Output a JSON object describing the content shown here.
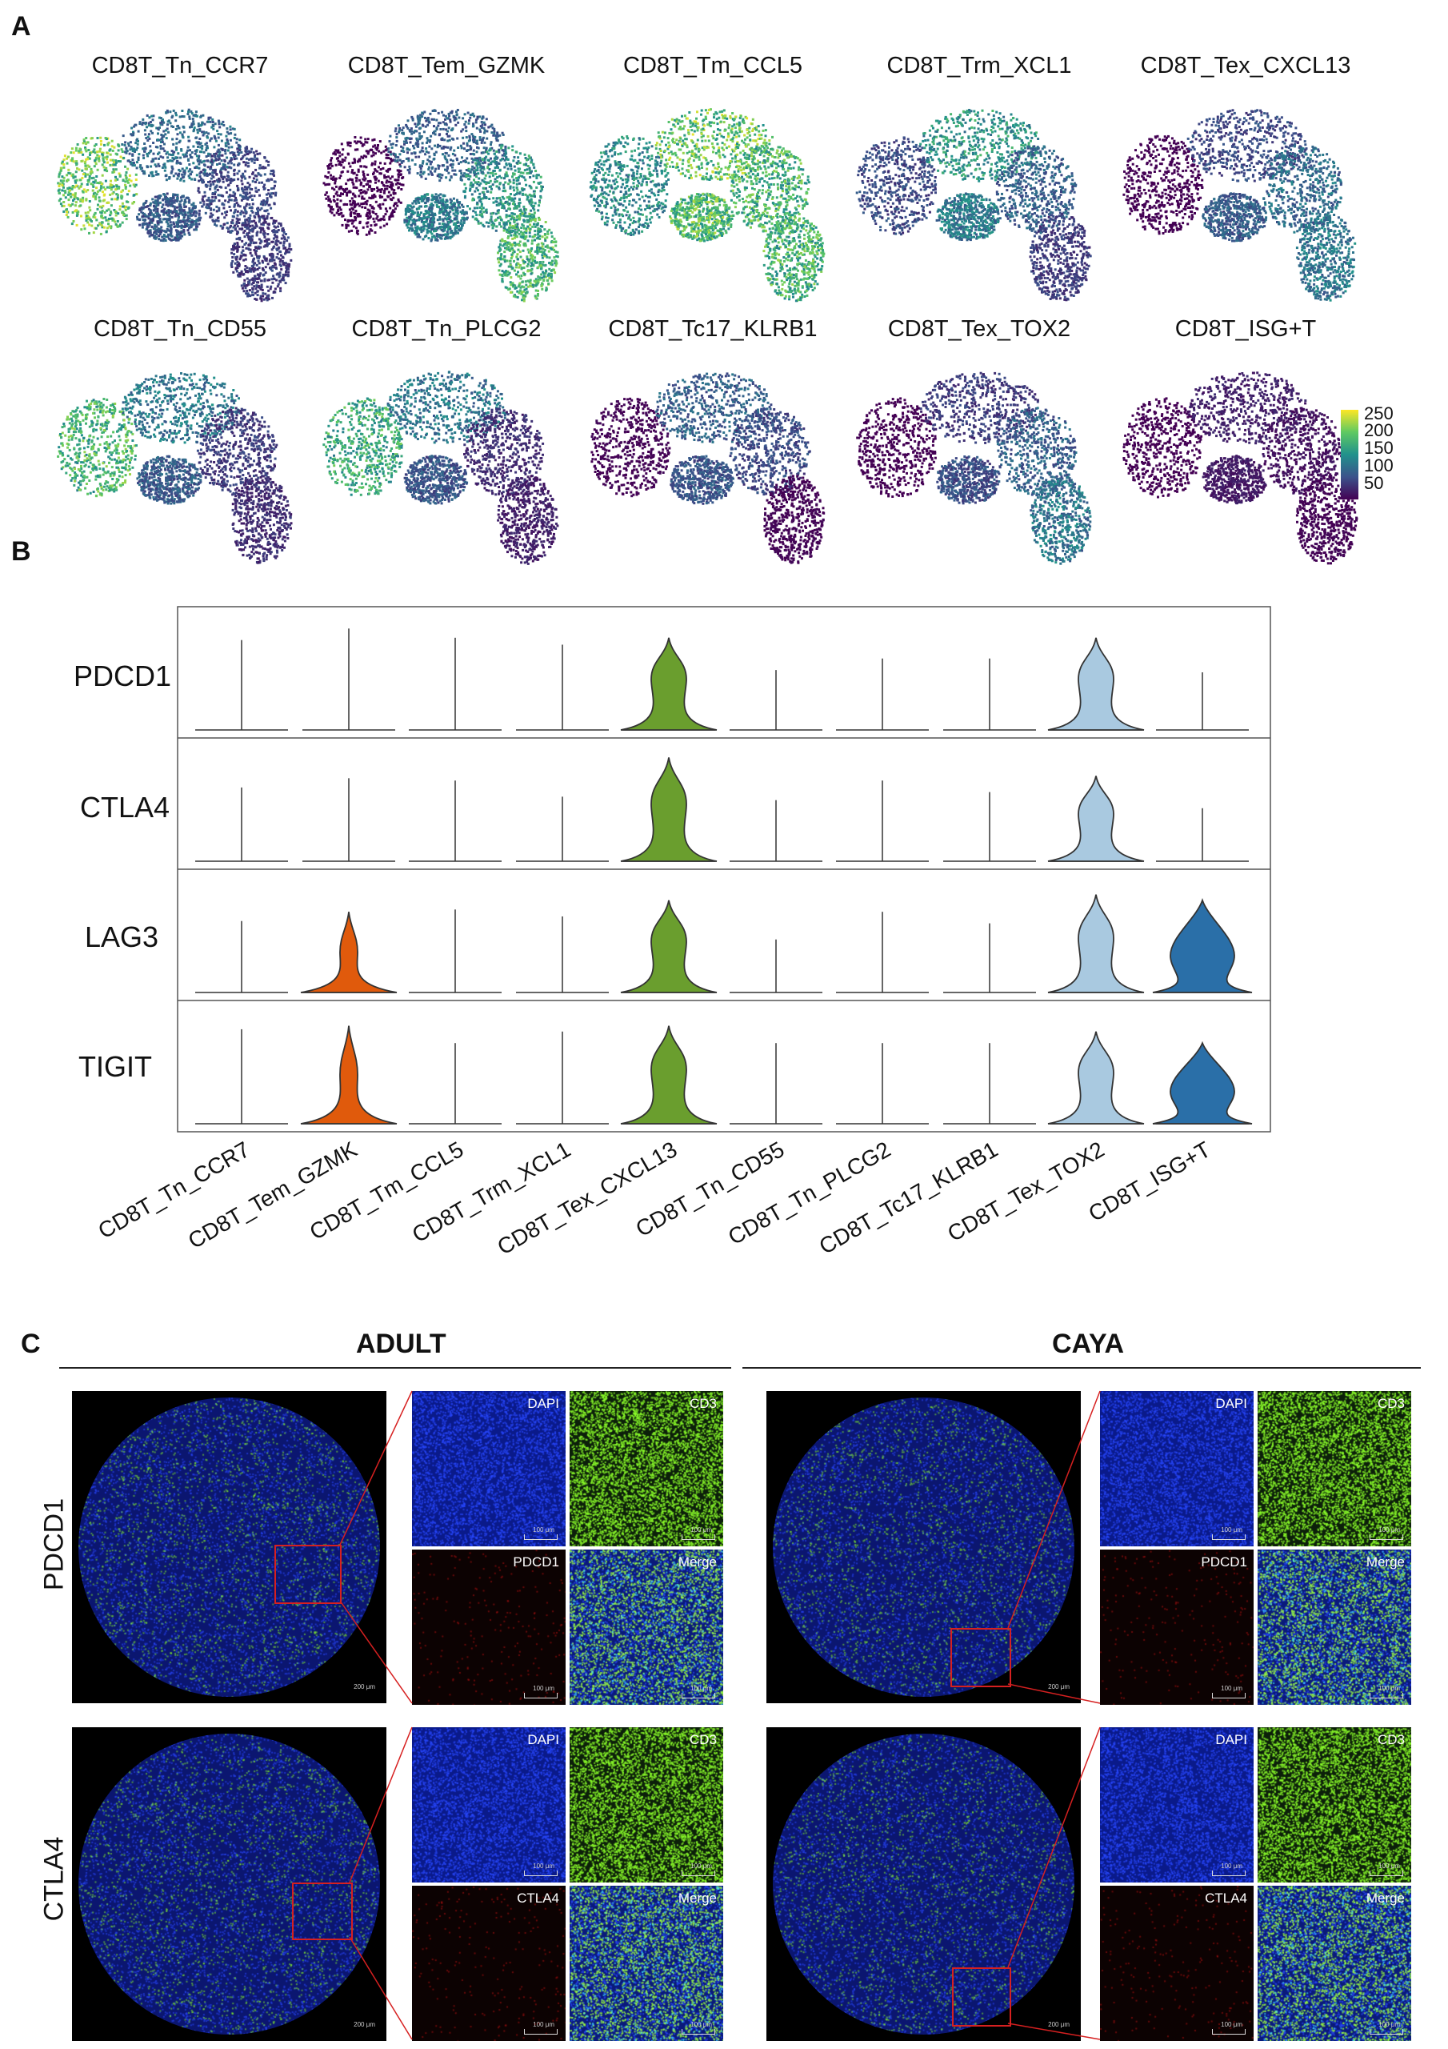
{
  "panels": {
    "a": "A",
    "b": "B",
    "c": "C"
  },
  "umap": {
    "row1": [
      "CD8T_Tn_CCR7",
      "CD8T_Tem_GZMK",
      "CD8T_Tm_CCL5",
      "CD8T_Trm_XCL1",
      "CD8T_Tex_CXCL13"
    ],
    "row2": [
      "CD8T_Tn_CD55",
      "CD8T_Tn_PLCG2",
      "CD8T_Tc17_KLRB1",
      "CD8T_Tex_TOX2",
      "CD8T_ISG+T"
    ],
    "colorbar_ticks": [
      "250",
      "200",
      "150",
      "100",
      "50"
    ],
    "colors": {
      "low": "#440154",
      "mid": "#21918c",
      "high": "#fde725"
    }
  },
  "violin": {
    "genes": [
      "PDCD1",
      "CTLA4",
      "LAG3",
      "TIGIT"
    ],
    "clusters": [
      "CD8T_Tn_CCR7",
      "CD8T_Tem_GZMK",
      "CD8T_Tm_CCL5",
      "CD8T_Trm_XCL1",
      "CD8T_Tex_CXCL13",
      "CD8T_Tn_CD55",
      "CD8T_Tn_PLCG2",
      "CD8T_Tc17_KLRB1",
      "CD8T_Tex_TOX2",
      "CD8T_ISG+T"
    ],
    "colors": {
      "orange": "#e05a0c",
      "green": "#6a9e2e",
      "lightblue": "#a9c9e0",
      "blue": "#2a6fa8"
    }
  },
  "panel_c": {
    "adult": "ADULT",
    "caya": "CAYA",
    "rows": [
      "PDCD1",
      "CTLA4"
    ],
    "channels_row1": [
      "DAPI",
      "CD3",
      "PDCD1",
      "Merge"
    ],
    "channels_row2": [
      "DAPI",
      "CD3",
      "CTLA4",
      "Merge"
    ],
    "scale_small": "100 μm",
    "scale_main": "200 μm"
  }
}
